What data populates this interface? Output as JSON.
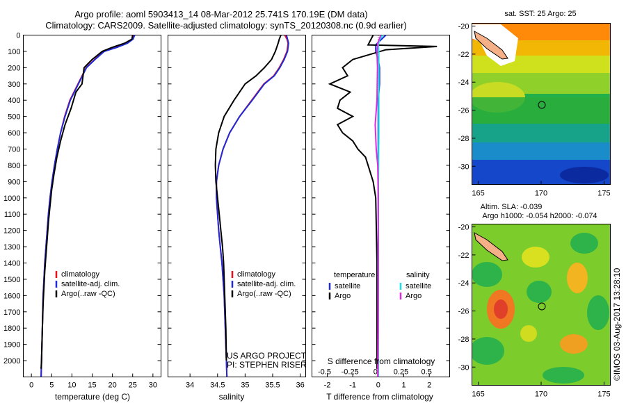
{
  "title_line1": "Argo profile: aoml 5903413_14 08-Mar-2012 25.741S 170.19E (DM data)",
  "title_line2": "Climatology: CARS2009. Satellite-adjusted climatology: synTS_20120308.nc (0.9d earlier)",
  "map1_title": "sat. SST: 25 Argo: 25",
  "map2_title1": "Altim. SLA: -0.039",
  "map2_title2": "Argo h1000: -0.054 h2000: -0.074",
  "credit": "©IMOS 03-Aug-2017 13:28:10",
  "project_line1": "US ARGO PROJECT",
  "project_line2": "PI: STEPHEN RISER",
  "colors": {
    "climatology": "#e8111b",
    "satellite": "#1f2bd8",
    "argo": "#000000",
    "satellite_s": "#19e0e8",
    "argo_s": "#e02ae0"
  },
  "legend_profile": [
    {
      "label": "climatology",
      "color": "#e8111b"
    },
    {
      "label": "satellite-adj. clim.",
      "color": "#1f2bd8"
    },
    {
      "label": "Argo(..raw -QC)",
      "color": "#000000"
    }
  ],
  "legend_diff": {
    "temperature_header": "temperature",
    "salinity_header": "salinity",
    "items_t": [
      {
        "label": "satellite",
        "color": "#1f2bd8"
      },
      {
        "label": "Argo",
        "color": "#000000"
      }
    ],
    "items_s": [
      {
        "label": "satellite",
        "color": "#19e0e8"
      },
      {
        "label": "Argo",
        "color": "#e02ae0"
      }
    ]
  },
  "chart_data": [
    {
      "type": "line",
      "xlabel": "temperature (deg C)",
      "ylabel": "",
      "xlim": [
        -2,
        32
      ],
      "ylim": [
        2100,
        0
      ],
      "xticks": [
        0,
        5,
        10,
        15,
        20,
        25,
        30
      ],
      "yticks": [
        0,
        100,
        200,
        300,
        400,
        500,
        600,
        700,
        800,
        900,
        1000,
        1100,
        1200,
        1300,
        1400,
        1500,
        1600,
        1700,
        1800,
        1900,
        2000
      ],
      "series": [
        {
          "name": "climatology",
          "color": "#e8111b",
          "x": [
            25.2,
            24.9,
            23.5,
            21.0,
            17.8,
            15.6,
            13.5,
            11.5,
            9.5,
            8.2,
            7.2,
            6.4,
            5.7,
            5.1,
            4.6,
            4.2,
            3.9,
            3.6,
            3.3,
            3.1,
            2.9,
            2.7,
            2.5,
            2.4
          ],
          "y": [
            0,
            25,
            50,
            75,
            100,
            150,
            200,
            300,
            400,
            500,
            600,
            700,
            800,
            900,
            1000,
            1100,
            1200,
            1300,
            1400,
            1500,
            1600,
            1800,
            2000,
            2100
          ]
        },
        {
          "name": "satellite-adj. clim.",
          "color": "#1f2bd8",
          "x": [
            25.5,
            25.1,
            23.7,
            21.2,
            18.0,
            15.7,
            13.6,
            11.6,
            9.6,
            8.3,
            7.2,
            6.4,
            5.7,
            5.1,
            4.6,
            4.2,
            3.9,
            3.6,
            3.3,
            3.1,
            2.9,
            2.7,
            2.5,
            2.4
          ],
          "y": [
            0,
            25,
            50,
            75,
            100,
            150,
            200,
            300,
            400,
            500,
            600,
            700,
            800,
            900,
            1000,
            1100,
            1200,
            1300,
            1400,
            1500,
            1600,
            1800,
            2000,
            2100
          ]
        },
        {
          "name": "Argo(..raw -QC)",
          "color": "#000000",
          "x": [
            25.0,
            24.8,
            23.0,
            20.0,
            17.5,
            15.0,
            13.0,
            12.5,
            11.0,
            9.8,
            8.3,
            7.2,
            6.3,
            5.6,
            5.0,
            4.6,
            4.2,
            3.9,
            3.6,
            3.3,
            3.1,
            2.9,
            2.7,
            2.5,
            2.4
          ],
          "y": [
            0,
            25,
            50,
            75,
            100,
            150,
            200,
            300,
            350,
            450,
            550,
            650,
            750,
            850,
            950,
            1050,
            1150,
            1250,
            1350,
            1450,
            1550,
            1650,
            1800,
            2000,
            2050
          ]
        }
      ]
    },
    {
      "type": "line",
      "xlabel": "salinity",
      "ylabel": "",
      "xlim": [
        33.6,
        36.1
      ],
      "ylim": [
        2100,
        0
      ],
      "xticks": [
        34,
        34.5,
        35,
        35.5,
        36
      ],
      "xticklabels": [
        "34",
        "34.5",
        "35",
        "35.5",
        "36"
      ],
      "series": [
        {
          "name": "climatology",
          "color": "#e8111b",
          "x": [
            35.72,
            35.76,
            35.78,
            35.76,
            35.7,
            35.62,
            35.52,
            35.34,
            35.12,
            34.9,
            34.72,
            34.6,
            34.52,
            34.48,
            34.48,
            34.5,
            34.52,
            34.55,
            34.58,
            34.6,
            34.62,
            34.64,
            34.66,
            34.67
          ],
          "y": [
            0,
            25,
            50,
            100,
            150,
            200,
            250,
            300,
            400,
            500,
            600,
            700,
            800,
            900,
            1000,
            1100,
            1200,
            1300,
            1400,
            1500,
            1600,
            1800,
            2000,
            2100
          ]
        },
        {
          "name": "satellite-adj. clim.",
          "color": "#1f2bd8",
          "x": [
            35.75,
            35.77,
            35.79,
            35.77,
            35.71,
            35.63,
            35.53,
            35.35,
            35.13,
            34.9,
            34.72,
            34.6,
            34.52,
            34.48,
            34.48,
            34.5,
            34.52,
            34.55,
            34.58,
            34.6,
            34.62,
            34.64,
            34.66,
            34.67
          ],
          "y": [
            0,
            25,
            50,
            100,
            150,
            200,
            250,
            300,
            400,
            500,
            600,
            700,
            800,
            900,
            1000,
            1100,
            1200,
            1300,
            1400,
            1500,
            1600,
            1800,
            2000,
            2100
          ]
        },
        {
          "name": "Argo(..raw -QC)",
          "color": "#000000",
          "x": [
            35.65,
            35.62,
            35.6,
            35.55,
            35.48,
            35.35,
            35.2,
            35.0,
            34.8,
            34.62,
            34.52,
            34.47,
            34.46,
            34.47,
            34.5,
            34.53,
            34.56,
            34.59,
            34.61,
            34.63,
            34.65,
            34.66
          ],
          "y": [
            0,
            25,
            50,
            100,
            150,
            200,
            250,
            300,
            400,
            500,
            600,
            700,
            800,
            900,
            1000,
            1100,
            1200,
            1300,
            1400,
            1600,
            1800,
            2000
          ]
        }
      ]
    },
    {
      "type": "line",
      "xlabel": "T difference from climatology",
      "xlabel_top": "S difference from climatology",
      "xlim": [
        -2.6,
        2.8
      ],
      "ylim": [
        2100,
        0
      ],
      "xticks": [
        -2,
        -1,
        0,
        1,
        2
      ],
      "xticks_top": [
        -0.5,
        -0.25,
        0,
        0.25,
        0.5
      ],
      "series": [
        {
          "name": "temperature satellite",
          "color": "#1f2bd8",
          "x": [
            0.3,
            0.1,
            -0.1,
            -0.1,
            0.0,
            0.05,
            0.05,
            0.0,
            0.0,
            0.0,
            0.0,
            0.0,
            0.0,
            0.0
          ],
          "y": [
            0,
            30,
            60,
            100,
            150,
            200,
            300,
            400,
            600,
            800,
            1000,
            1400,
            1800,
            2100
          ]
        },
        {
          "name": "temperature Argo",
          "color": "#000000",
          "x": [
            -0.2,
            -0.4,
            2.3,
            0.3,
            -1.0,
            -1.4,
            -1.2,
            -1.9,
            -1.1,
            -1.5,
            -1.6,
            -1.0,
            -1.6,
            -1.4,
            -1.0,
            -0.8,
            -0.5,
            -0.4,
            -0.3,
            -0.2,
            -0.1,
            -0.05,
            -0.05,
            -0.05
          ],
          "y": [
            0,
            60,
            70,
            90,
            150,
            200,
            250,
            300,
            350,
            400,
            450,
            500,
            550,
            600,
            650,
            700,
            750,
            800,
            850,
            900,
            1000,
            1400,
            1800,
            2050
          ]
        },
        {
          "name": "salinity satellite",
          "color": "#19e0e8",
          "x": [
            0.18,
            0.05,
            0.0,
            0.02,
            0.02,
            0.02,
            0.02,
            0.01,
            0.0,
            0.0,
            -0.01,
            -0.01,
            0.0
          ],
          "y": [
            0,
            30,
            60,
            100,
            200,
            400,
            600,
            800,
            1000,
            1200,
            1400,
            1800,
            2100
          ]
        },
        {
          "name": "salinity Argo",
          "color": "#e02ae0",
          "x": [
            0.1,
            -0.02,
            -0.05,
            -0.03,
            -0.05,
            -0.12,
            -0.08,
            -0.02,
            0.0,
            0.0,
            -0.01,
            -0.02
          ],
          "y": [
            0,
            50,
            100,
            200,
            400,
            550,
            700,
            800,
            1000,
            1400,
            1800,
            2100
          ]
        }
      ]
    },
    {
      "type": "heatmap",
      "title": "sat. SST: 25 Argo: 25",
      "xticks": [
        165,
        170,
        175
      ],
      "yticks": [
        -20,
        -22,
        -24,
        -26,
        -28,
        -30
      ],
      "xlim": [
        164.5,
        175.5
      ],
      "ylim": [
        -31.3,
        -19.8
      ],
      "marker": {
        "lon": 170.19,
        "lat": -25.741
      }
    },
    {
      "type": "heatmap",
      "title": "Altim. SLA: -0.039",
      "xticks": [
        165,
        170,
        175
      ],
      "yticks": [
        -20,
        -22,
        -24,
        -26,
        -28,
        -30
      ],
      "xlim": [
        164.5,
        175.5
      ],
      "ylim": [
        -31.3,
        -19.8
      ],
      "marker": {
        "lon": 170.19,
        "lat": -25.741
      }
    }
  ]
}
